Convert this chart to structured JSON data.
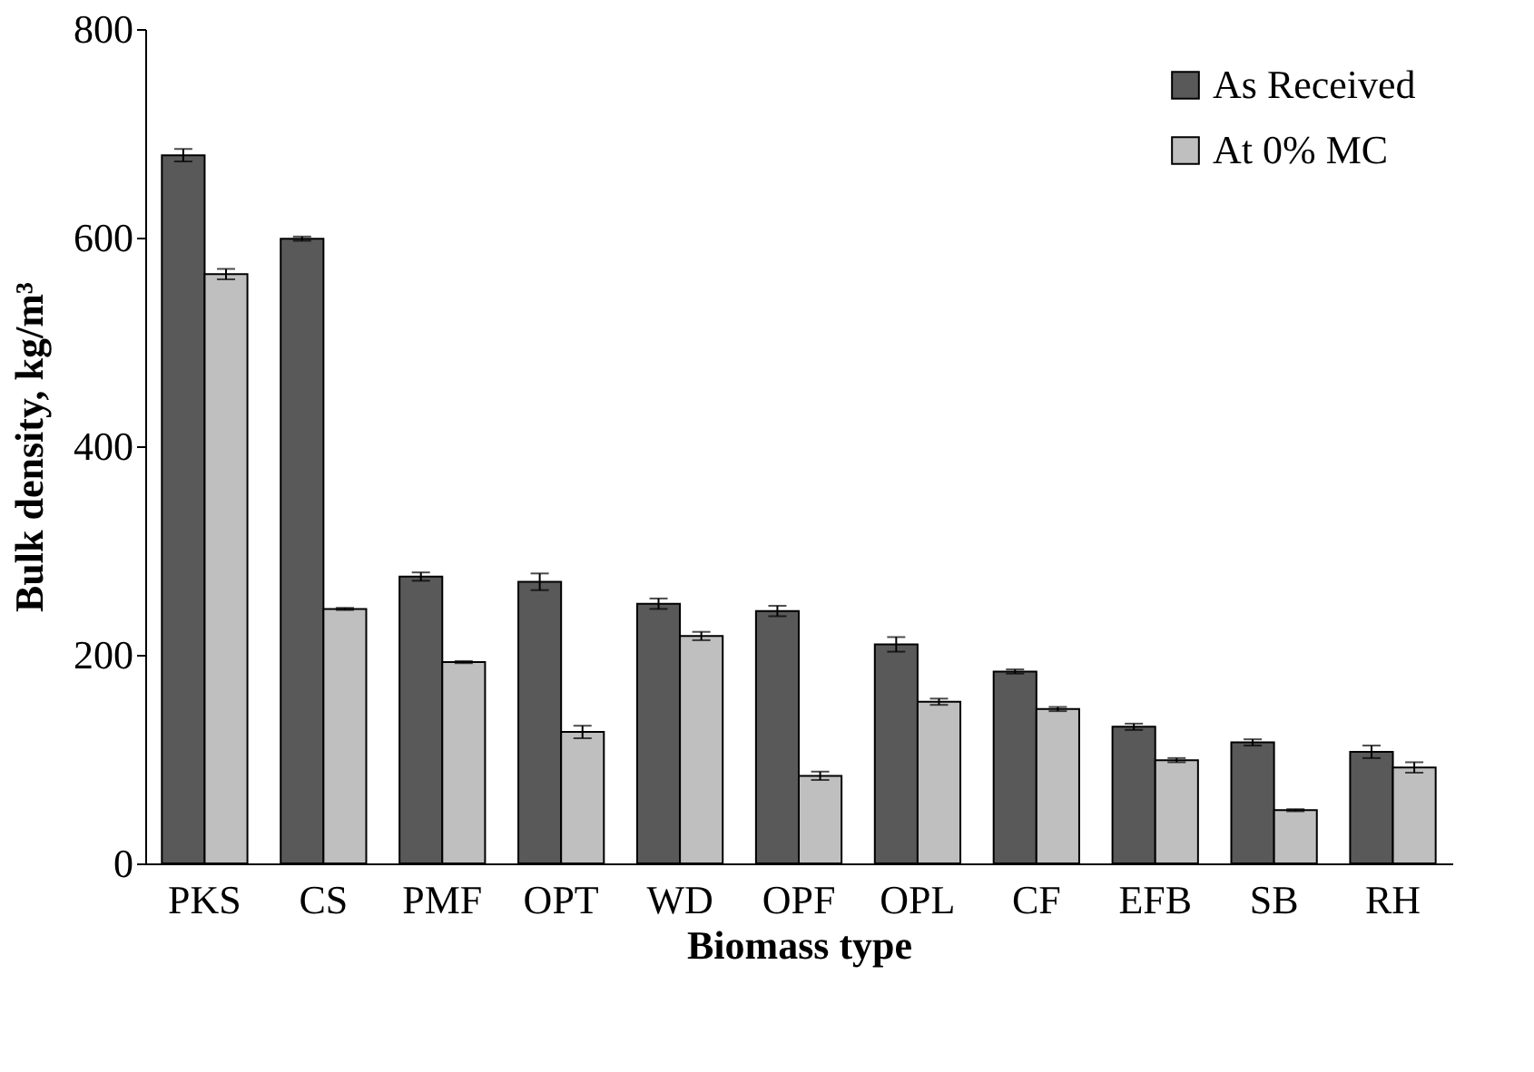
{
  "chart_data": {
    "type": "bar",
    "xlabel": "Biomass type",
    "ylabel": "Bulk density, kg/m³",
    "categories": [
      "PKS",
      "CS",
      "PMF",
      "OPT",
      "WD",
      "OPF",
      "OPL",
      "CF",
      "EFB",
      "SB",
      "RH"
    ],
    "series": [
      {
        "name": "As Received",
        "color": "#595959",
        "values": [
          679,
          599,
          275,
          270,
          249,
          242,
          210,
          184,
          131,
          116,
          107
        ],
        "errors": [
          6,
          2,
          4,
          8,
          5,
          5,
          7,
          2,
          3,
          3,
          6
        ]
      },
      {
        "name": "At 0% MC",
        "color": "#bfbfbf",
        "values": [
          565,
          244,
          193,
          126,
          218,
          84,
          155,
          148,
          99,
          51,
          92
        ],
        "errors": [
          5,
          1,
          1,
          6,
          4,
          4,
          3,
          2,
          2,
          1,
          5
        ]
      }
    ],
    "ylim": [
      0,
      800
    ],
    "yticks": [
      0,
      200,
      400,
      600,
      800
    ],
    "grid": false,
    "legend": "top right"
  }
}
